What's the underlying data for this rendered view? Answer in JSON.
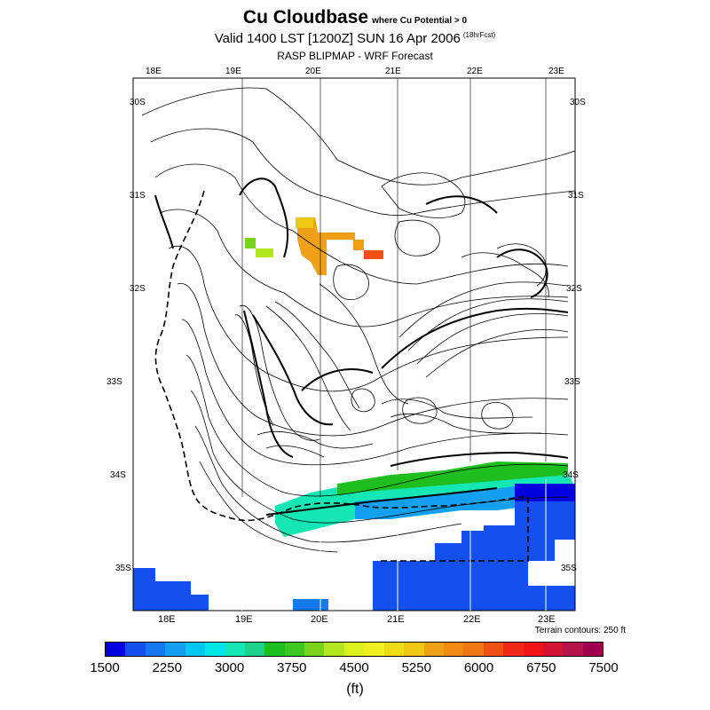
{
  "header": {
    "title": "Cu Cloudbase",
    "subtitle": "where Cu Potential > 0",
    "valid": "Valid 1400 LST [1200Z] SUN 16 Apr 2006",
    "forecast_tag": "(18hrFcst)",
    "model": "RASP BLIPMAP - WRF Forecast"
  },
  "map": {
    "lon_top": [
      "18E",
      "19E",
      "20E",
      "21E",
      "22E",
      "23E"
    ],
    "lon_bottom": [
      "18E",
      "19E",
      "20E",
      "21E",
      "22E",
      "23E"
    ],
    "lat_left": [
      "30S",
      "31S",
      "32S",
      "33S",
      "34S",
      "35S"
    ],
    "lat_right": [
      "30S",
      "31S",
      "32S",
      "33S",
      "34S",
      "35S"
    ],
    "terrain_note": "Terrain contours: 250 ft"
  },
  "colorbar": {
    "colors": [
      "#0000e0",
      "#1450f0",
      "#1478f0",
      "#14a0f0",
      "#00c8f0",
      "#00e6e6",
      "#14e6b4",
      "#1ed28c",
      "#1ebe1e",
      "#3cc81e",
      "#78d21e",
      "#b4e61e",
      "#dcf01e",
      "#f0f01e",
      "#f0dc14",
      "#f0c814",
      "#f0a014",
      "#f08c14",
      "#f07814",
      "#f05014",
      "#f02814",
      "#f01414",
      "#d21432",
      "#b4144b",
      "#a00050"
    ],
    "labels": [
      "1500",
      "2250",
      "3000",
      "3750",
      "4500",
      "5250",
      "6000",
      "6750",
      "7500"
    ],
    "units": "(ft)"
  }
}
